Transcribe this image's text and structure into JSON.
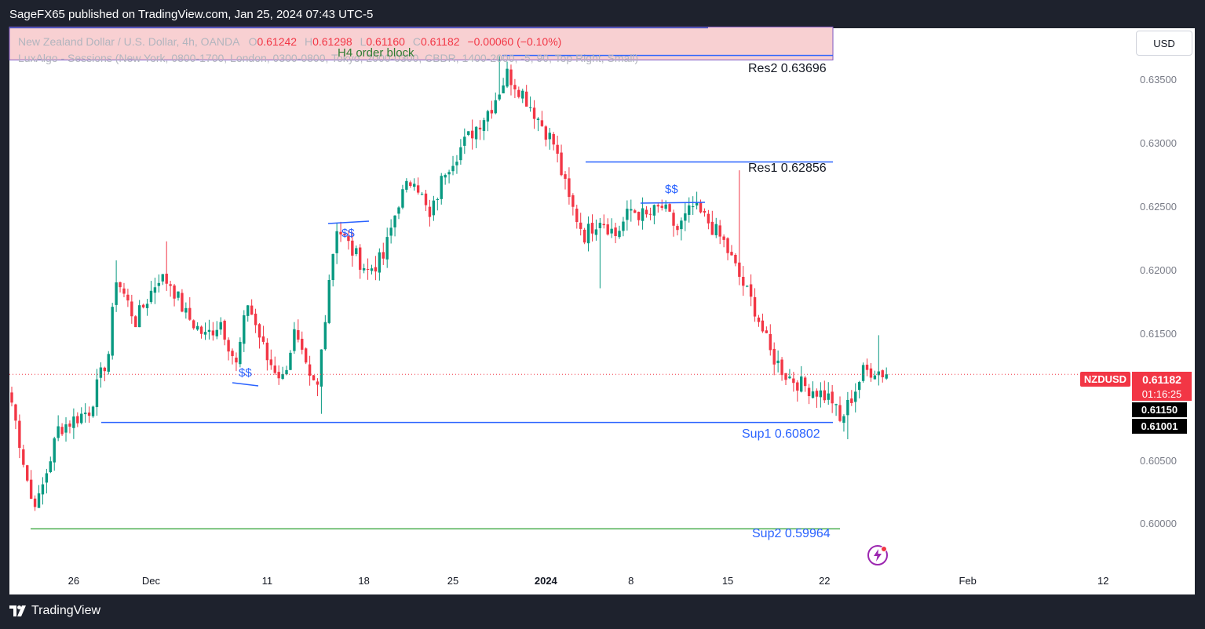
{
  "header": {
    "publisher": "SageFX65 published on TradingView.com, Jan 25, 2024 07:43 UTC-5"
  },
  "footer": {
    "logo_text": "TradingView"
  },
  "currency_button": "USD",
  "legend": {
    "symbol": "New Zealand Dollar / U.S. Dollar, 4h, OANDA",
    "o_label": "O",
    "o_value": "0.61242",
    "h_label": "H",
    "h_value": "0.61298",
    "l_label": "L",
    "l_value": "0.61160",
    "c_label": "C",
    "c_value": "0.61182",
    "change": "−0.00060 (−0.10%)",
    "indicator": "LuxAlgo - Sessions (New York, 0800-1700, London, 0300-0800, Tokyo, 2000-0300, CBDR, 1400-2000, -5, 90, Top Right, Small)"
  },
  "annotations": {
    "order_block": "H4 order block",
    "liquidity_marks": [
      "$$",
      "$$",
      "$$"
    ]
  },
  "colors": {
    "up": "#089981",
    "down": "#f23645",
    "support1": "#2962ff",
    "support2": "#4caf50",
    "resistance": "#2962ff",
    "order_block_fill": "#f8d0d2",
    "order_block_border": "#7e57c2"
  },
  "price_badges": {
    "symbol": "NZDUSD",
    "last": "0.61182",
    "countdown": "01:16:25",
    "level_a": "0.61150",
    "level_b": "0.61001"
  },
  "chart_data": {
    "type": "candlestick",
    "symbol": "NZDUSD",
    "timeframe": "4h",
    "y_ticks": [
      "0.63500",
      "0.63000",
      "0.62500",
      "0.62000",
      "0.61500",
      "0.60500",
      "0.60000"
    ],
    "ylim": [
      0.5965,
      0.6391
    ],
    "x_ticks": [
      {
        "label": "26",
        "index": 16,
        "bold": false
      },
      {
        "label": "Dec",
        "index": 36,
        "bold": false
      },
      {
        "label": "11",
        "index": 66,
        "bold": false
      },
      {
        "label": "18",
        "index": 91,
        "bold": false
      },
      {
        "label": "25",
        "index": 114,
        "bold": false
      },
      {
        "label": "2024",
        "index": 138,
        "bold": true
      },
      {
        "label": "8",
        "index": 160,
        "bold": false
      },
      {
        "label": "15",
        "index": 185,
        "bold": false
      },
      {
        "label": "22",
        "index": 210,
        "bold": false
      },
      {
        "label": "Feb",
        "index": 247,
        "bold": false
      },
      {
        "label": "12",
        "index": 282,
        "bold": false
      }
    ],
    "levels": [
      {
        "name": "Res2",
        "label": "Res2 0.63696",
        "value": 0.63696
      },
      {
        "name": "Res1",
        "label": "Res1 0.62856",
        "value": 0.62856
      },
      {
        "name": "Sup1",
        "label": "Sup1  0.60802",
        "value": 0.60802
      },
      {
        "name": "Sup2",
        "label": "Sup2 0.59964",
        "value": 0.59964
      }
    ],
    "order_block": {
      "low": 0.6366,
      "high": 0.6392
    },
    "anchors": [
      [
        0,
        0.6096
      ],
      [
        5,
        0.602
      ],
      [
        7,
        0.6019
      ],
      [
        12,
        0.6075
      ],
      [
        20,
        0.609
      ],
      [
        25,
        0.6135
      ],
      [
        27,
        0.6195
      ],
      [
        32,
        0.616
      ],
      [
        38,
        0.6195
      ],
      [
        41,
        0.619
      ],
      [
        45,
        0.6165
      ],
      [
        50,
        0.6148
      ],
      [
        54,
        0.616
      ],
      [
        58,
        0.6125
      ],
      [
        61,
        0.6175
      ],
      [
        66,
        0.613
      ],
      [
        70,
        0.6115
      ],
      [
        73,
        0.615
      ],
      [
        77,
        0.6112
      ],
      [
        79,
        0.6108
      ],
      [
        82,
        0.6195
      ],
      [
        84,
        0.6235
      ],
      [
        88,
        0.6215
      ],
      [
        92,
        0.62
      ],
      [
        96,
        0.621
      ],
      [
        100,
        0.6255
      ],
      [
        104,
        0.6275
      ],
      [
        108,
        0.624
      ],
      [
        112,
        0.628
      ],
      [
        118,
        0.6305
      ],
      [
        124,
        0.633
      ],
      [
        128,
        0.6355
      ],
      [
        132,
        0.634
      ],
      [
        136,
        0.632
      ],
      [
        140,
        0.63
      ],
      [
        144,
        0.6255
      ],
      [
        148,
        0.6228
      ],
      [
        152,
        0.6242
      ],
      [
        156,
        0.6228
      ],
      [
        160,
        0.6248
      ],
      [
        164,
        0.6242
      ],
      [
        168,
        0.625
      ],
      [
        172,
        0.6232
      ],
      [
        176,
        0.625
      ],
      [
        180,
        0.6238
      ],
      [
        184,
        0.6222
      ],
      [
        188,
        0.6195
      ],
      [
        192,
        0.617
      ],
      [
        196,
        0.6135
      ],
      [
        200,
        0.6118
      ],
      [
        204,
        0.611
      ],
      [
        208,
        0.6105
      ],
      [
        212,
        0.6098
      ],
      [
        214,
        0.608
      ],
      [
        217,
        0.61
      ],
      [
        220,
        0.612
      ],
      [
        223,
        0.6122
      ],
      [
        226,
        0.6118
      ]
    ],
    "wick_extremes": [
      [
        7,
        0.6019,
        "low"
      ],
      [
        27,
        0.6208,
        "high"
      ],
      [
        40,
        0.6223,
        "high"
      ],
      [
        80,
        0.6087,
        "low"
      ],
      [
        126,
        0.6369,
        "high"
      ],
      [
        152,
        0.6186,
        "low"
      ],
      [
        188,
        0.6279,
        "high"
      ],
      [
        216,
        0.6067,
        "low"
      ],
      [
        224,
        0.6149,
        "high"
      ]
    ]
  }
}
